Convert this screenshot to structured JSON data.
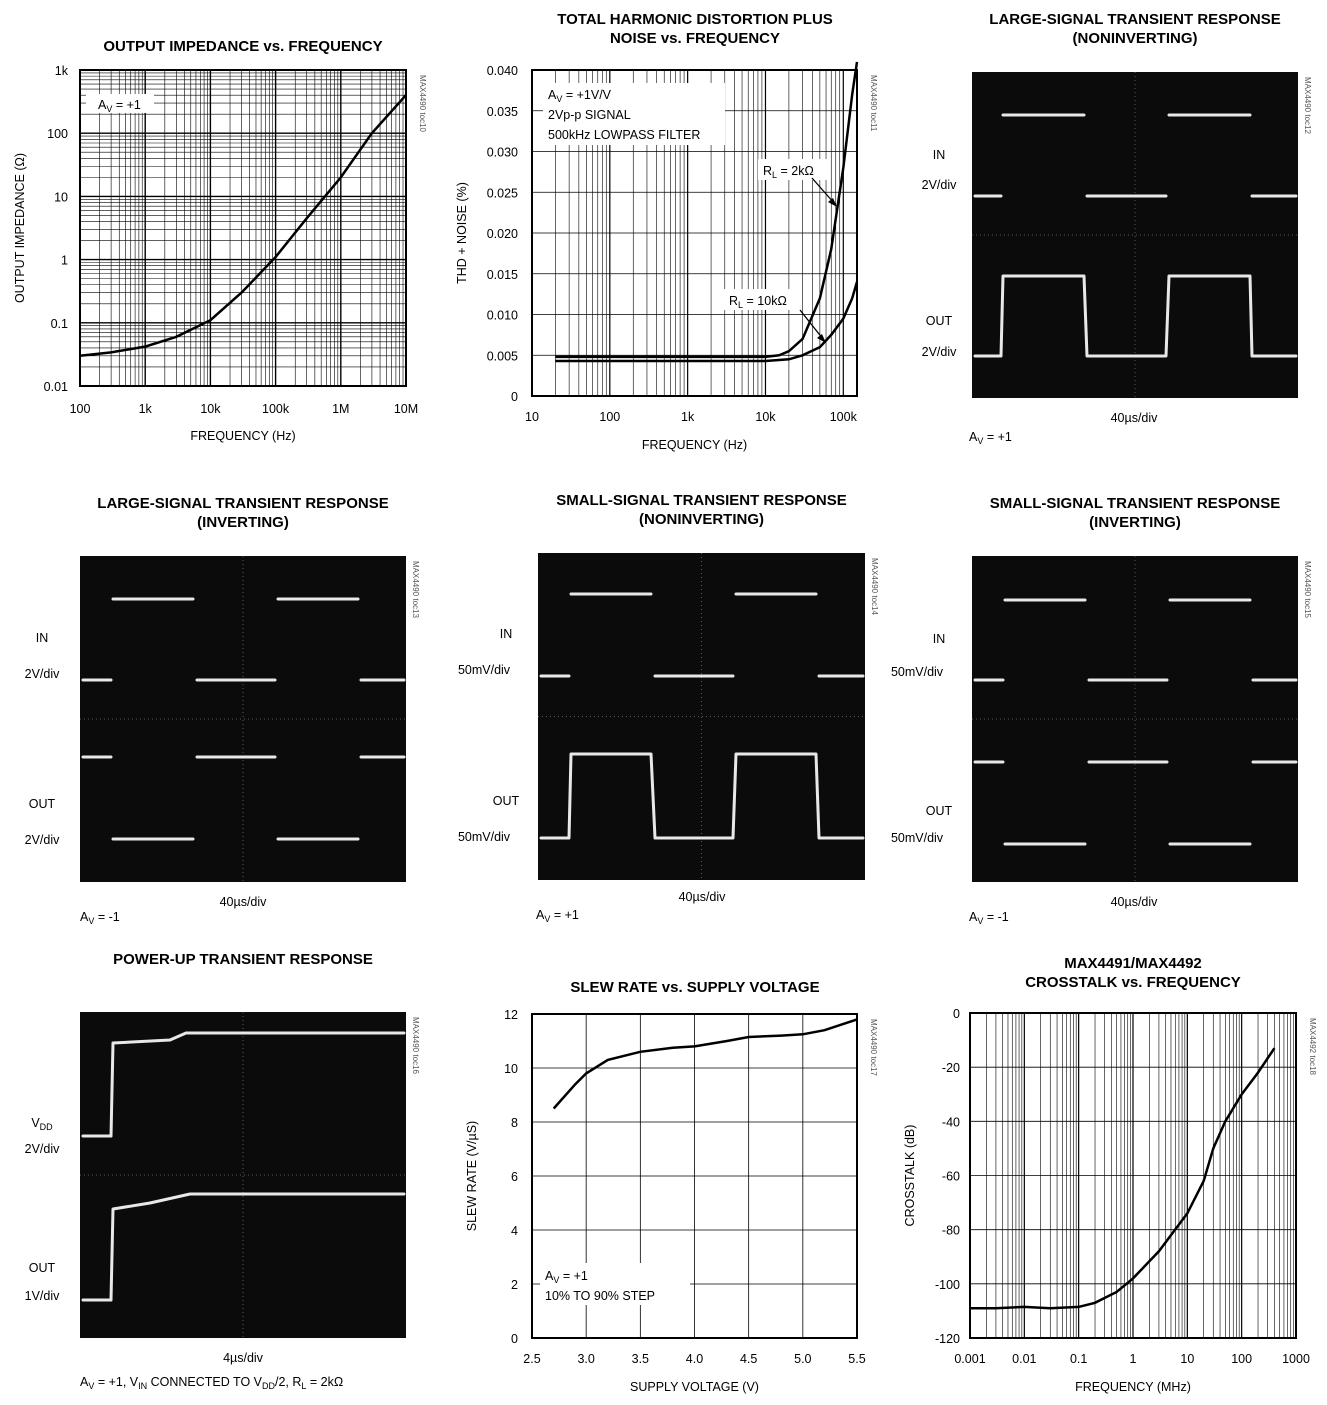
{
  "charts": [
    {
      "id": "toc10",
      "title_lines": [
        "OUTPUT IMPEDANCE vs. FREQUENCY"
      ],
      "tag": "MAX4490 toc10",
      "xlabel": "FREQUENCY (Hz)",
      "ylabel": "OUTPUT IMPEDANCE (Ω)",
      "xticks": [
        "100",
        "1k",
        "10k",
        "100k",
        "1M",
        "10M"
      ],
      "yticks": [
        "0.01",
        "0.1",
        "1",
        "10",
        "100",
        "1k"
      ],
      "annotations": [
        {
          "main": "A",
          "sub": "V",
          "rest": " = +1"
        }
      ]
    },
    {
      "id": "toc11",
      "title_lines": [
        "TOTAL HARMONIC DISTORTION PLUS",
        "NOISE vs. FREQUENCY"
      ],
      "tag": "MAX4490 toc11",
      "xlabel": "FREQUENCY (Hz)",
      "ylabel": "THD + NOISE (%)",
      "xticks": [
        "10",
        "100",
        "1k",
        "10k",
        "100k"
      ],
      "yticks": [
        "0",
        "0.005",
        "0.010",
        "0.015",
        "0.020",
        "0.025",
        "0.030",
        "0.035",
        "0.040"
      ],
      "annotations": [
        {
          "main": "A",
          "sub": "V",
          "rest": " = +1V/V"
        },
        {
          "main": "2Vp-p SIGNAL",
          "sub": "",
          "rest": ""
        },
        {
          "main": "500kHz LOWPASS FILTER",
          "sub": "",
          "rest": ""
        },
        {
          "main": "R",
          "sub": "L",
          "rest": " = 2kΩ"
        },
        {
          "main": "R",
          "sub": "L",
          "rest": " = 10kΩ"
        }
      ]
    },
    {
      "id": "toc12",
      "title_lines": [
        "LARGE-SIGNAL TRANSIENT RESPONSE",
        "(NONINVERTING)"
      ],
      "tag": "MAX4490 toc12",
      "labels": [
        "IN",
        "2V/div",
        "OUT",
        "2V/div"
      ],
      "timebase": "40µs/div",
      "gain": {
        "main": "A",
        "sub": "V",
        "rest": " = +1"
      }
    },
    {
      "id": "toc13",
      "title_lines": [
        "LARGE-SIGNAL TRANSIENT RESPONSE",
        "(INVERTING)"
      ],
      "tag": "MAX4490 toc13",
      "labels": [
        "IN",
        "2V/div",
        "OUT",
        "2V/div"
      ],
      "timebase": "40µs/div",
      "gain": {
        "main": "A",
        "sub": "V",
        "rest": " = -1"
      }
    },
    {
      "id": "toc14",
      "title_lines": [
        "SMALL-SIGNAL TRANSIENT RESPONSE",
        "(NONINVERTING)"
      ],
      "tag": "MAX4490 toc14",
      "labels": [
        "IN",
        "50mV/div",
        "OUT",
        "50mV/div"
      ],
      "timebase": "40µs/div",
      "gain": {
        "main": "A",
        "sub": "V",
        "rest": " = +1"
      }
    },
    {
      "id": "toc15",
      "title_lines": [
        "SMALL-SIGNAL TRANSIENT RESPONSE",
        "(INVERTING)"
      ],
      "tag": "MAX4490 toc15",
      "labels": [
        "IN",
        "50mV/div",
        "OUT",
        "50mV/div"
      ],
      "timebase": "40µs/div",
      "gain": {
        "main": "A",
        "sub": "V",
        "rest": " = -1"
      }
    },
    {
      "id": "toc16",
      "title_lines": [
        "POWER-UP TRANSIENT RESPONSE"
      ],
      "tag": "MAX4490 toc16",
      "labels": [
        "V",
        "DD",
        "2V/div",
        "OUT",
        "1V/div"
      ],
      "timebase": "4µs/div",
      "caption": [
        {
          "t": "A",
          "sub": false
        },
        {
          "t": "V",
          "sub": true
        },
        {
          "t": " = +1, V",
          "sub": false
        },
        {
          "t": "IN",
          "sub": true
        },
        {
          "t": " CONNECTED TO V",
          "sub": false
        },
        {
          "t": "DD",
          "sub": true
        },
        {
          "t": "/2, R",
          "sub": false
        },
        {
          "t": "L",
          "sub": true
        },
        {
          "t": " = 2kΩ",
          "sub": false
        }
      ]
    },
    {
      "id": "toc17",
      "title_lines": [
        "SLEW RATE vs. SUPPLY VOLTAGE"
      ],
      "tag": "MAX4490 toc17",
      "xlabel": "SUPPLY VOLTAGE (V)",
      "ylabel": "SLEW RATE (V/µS)",
      "xticks": [
        "2.5",
        "3.0",
        "3.5",
        "4.0",
        "4.5",
        "5.0",
        "5.5"
      ],
      "yticks": [
        "0",
        "2",
        "4",
        "6",
        "8",
        "10",
        "12"
      ],
      "annotations": [
        {
          "main": "A",
          "sub": "V",
          "rest": " = +1"
        },
        {
          "main": "10% TO 90% STEP",
          "sub": "",
          "rest": ""
        }
      ]
    },
    {
      "id": "toc18",
      "title_lines": [
        "MAX4491/MAX4492",
        "CROSSTALK vs. FREQUENCY"
      ],
      "tag": "MAX4492 toc18",
      "xlabel": "FREQUENCY (MHz)",
      "ylabel": "CROSSTALK (dB)",
      "xticks": [
        "0.001",
        "0.01",
        "0.1",
        "1",
        "10",
        "100",
        "1000"
      ],
      "yticks": [
        "-120",
        "-100",
        "-80",
        "-60",
        "-40",
        "-20",
        "0"
      ]
    }
  ],
  "chart_data": [
    {
      "type": "line",
      "title": "OUTPUT IMPEDANCE vs. FREQUENCY",
      "xlabel": "FREQUENCY (Hz)",
      "ylabel": "OUTPUT IMPEDANCE (Ω)",
      "xscale": "log",
      "yscale": "log",
      "xlim": [
        100,
        10000000
      ],
      "ylim": [
        0.01,
        1000
      ],
      "grid": true,
      "series": [
        {
          "x": [
            100,
            300,
            1000,
            3000,
            10000,
            30000,
            100000,
            300000,
            1000000,
            3000000,
            10000000
          ],
          "y": [
            0.03,
            0.034,
            0.042,
            0.06,
            0.11,
            0.3,
            1.1,
            4.5,
            20,
            100,
            400
          ]
        }
      ]
    },
    {
      "type": "line",
      "title": "TOTAL HARMONIC DISTORTION PLUS NOISE vs. FREQUENCY",
      "xlabel": "FREQUENCY (Hz)",
      "ylabel": "THD + NOISE (%)",
      "xscale": "log",
      "xlim": [
        10,
        150000
      ],
      "ylim": [
        0,
        0.04
      ],
      "grid": true,
      "series": [
        {
          "name": "RL = 2kΩ",
          "x": [
            20,
            100,
            1000,
            10000,
            15000,
            20000,
            30000,
            50000,
            70000,
            100000,
            130000,
            150000
          ],
          "y": [
            0.0048,
            0.0048,
            0.0048,
            0.0048,
            0.005,
            0.0055,
            0.007,
            0.012,
            0.018,
            0.028,
            0.037,
            0.041
          ]
        },
        {
          "name": "RL = 10kΩ",
          "x": [
            20,
            100,
            1000,
            10000,
            20000,
            30000,
            50000,
            70000,
            100000,
            130000,
            150000
          ],
          "y": [
            0.0043,
            0.0043,
            0.0043,
            0.0043,
            0.0045,
            0.005,
            0.006,
            0.0075,
            0.0095,
            0.012,
            0.014
          ]
        }
      ]
    },
    {
      "type": "line",
      "title": "SLEW RATE vs. SUPPLY VOLTAGE",
      "xlabel": "SUPPLY VOLTAGE (V)",
      "ylabel": "SLEW RATE (V/µS)",
      "xlim": [
        2.5,
        5.5
      ],
      "ylim": [
        0,
        12
      ],
      "grid": true,
      "series": [
        {
          "x": [
            2.7,
            2.9,
            3.0,
            3.2,
            3.5,
            3.8,
            4.0,
            4.3,
            4.5,
            4.8,
            5.0,
            5.2,
            5.5
          ],
          "y": [
            8.5,
            9.4,
            9.8,
            10.3,
            10.6,
            10.75,
            10.8,
            11.0,
            11.15,
            11.2,
            11.25,
            11.4,
            11.8
          ]
        }
      ]
    },
    {
      "type": "line",
      "title": "MAX4491/MAX4492 CROSSTALK vs. FREQUENCY",
      "xlabel": "FREQUENCY (MHz)",
      "ylabel": "CROSSTALK (dB)",
      "xscale": "log",
      "xlim": [
        0.001,
        1000
      ],
      "ylim": [
        -120,
        0
      ],
      "grid": true,
      "series": [
        {
          "x": [
            0.001,
            0.003,
            0.01,
            0.03,
            0.1,
            0.2,
            0.5,
            1,
            3,
            10,
            20,
            30,
            50,
            100,
            200,
            400
          ],
          "y": [
            -109,
            -109,
            -108.5,
            -109,
            -108.5,
            -107,
            -103,
            -98,
            -88,
            -74,
            -62,
            -50,
            -40,
            -30,
            -22,
            -13
          ]
        }
      ]
    }
  ]
}
